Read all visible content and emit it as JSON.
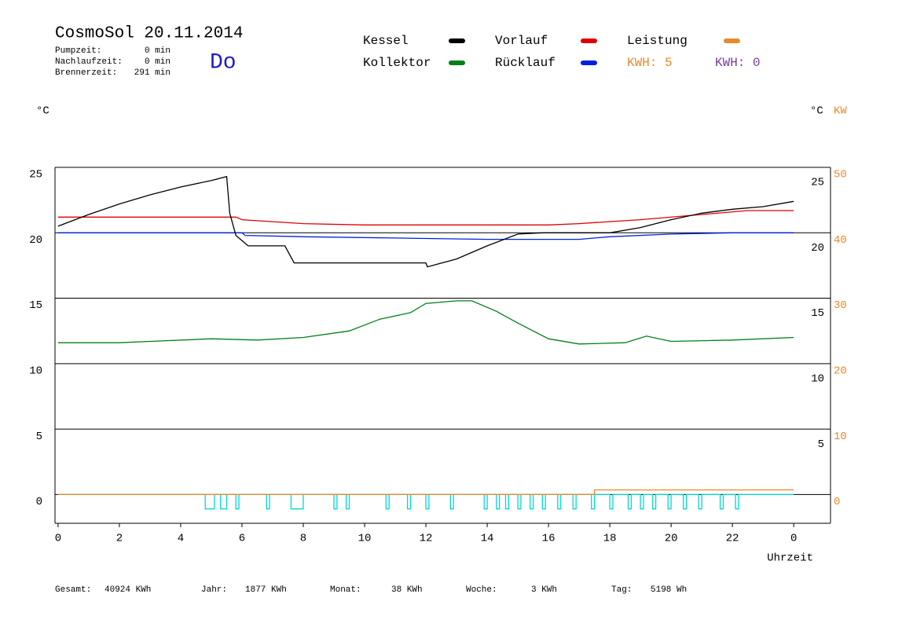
{
  "chart_data": {
    "type": "line",
    "title": "CosmoSol 20.11.2014",
    "weekday": "Do",
    "runtimes": [
      {
        "label": "Pumpzeit:",
        "value": "0 min"
      },
      {
        "label": "Nachlaufzeit:",
        "value": "0 min"
      },
      {
        "label": "Brennerzeit:",
        "value": "291 min"
      }
    ],
    "kwh_labels": [
      {
        "text": "KWH: 5",
        "color": "#e8892a"
      },
      {
        "text": "KWH: 0",
        "color": "#7a3a9a"
      }
    ],
    "y_label": "°C",
    "y2_label_c": "°C",
    "y2_label_kw": "KW",
    "x_label": "Uhrzeit",
    "xlim": [
      -0.1,
      25.2
    ],
    "xticks": [
      0,
      2,
      4,
      6,
      8,
      10,
      12,
      14,
      16,
      18,
      20,
      22,
      {
        "value": 24,
        "label": "0"
      }
    ],
    "ylim": [
      -2.2,
      25
    ],
    "yticks": [
      0,
      5,
      10,
      15,
      20,
      25
    ],
    "yticks_right": [
      5,
      10,
      15,
      20,
      25
    ],
    "y2lim": [
      -4.4,
      50
    ],
    "y2ticks": [
      0,
      10,
      20,
      30,
      40,
      50
    ],
    "grid": true,
    "series": [
      {
        "name": "Kessel",
        "color": "#000000",
        "x": [
          0,
          1,
          2,
          3,
          4,
          5,
          5.5,
          5.6,
          5.8,
          6.2,
          7.4,
          7.7,
          12,
          12.05,
          13,
          14,
          15,
          15.8,
          17,
          18,
          19,
          20,
          21,
          22,
          23,
          24
        ],
        "values": [
          20.5,
          21.4,
          22.2,
          22.9,
          23.5,
          24.0,
          24.3,
          21.5,
          19.8,
          19.0,
          19.0,
          17.7,
          17.7,
          17.4,
          18.0,
          19.0,
          19.9,
          20.0,
          20.0,
          20.0,
          20.4,
          21.0,
          21.5,
          21.8,
          22.0,
          22.4
        ]
      },
      {
        "name": "Vorlauf",
        "color": "#e00000",
        "x": [
          0,
          5.8,
          6,
          8,
          10,
          16,
          17,
          19,
          21,
          22.5,
          24
        ],
        "values": [
          21.2,
          21.2,
          21.0,
          20.7,
          20.6,
          20.6,
          20.7,
          21.0,
          21.4,
          21.7,
          21.7
        ]
      },
      {
        "name": "Rücklauf",
        "color": "#0020e0",
        "x": [
          0,
          6,
          6.1,
          8,
          14,
          17,
          18,
          20,
          22,
          24
        ],
        "values": [
          20.0,
          20.0,
          19.8,
          19.7,
          19.5,
          19.5,
          19.7,
          19.9,
          20.0,
          20.0
        ]
      },
      {
        "name": "Kollektor",
        "color": "#00801a",
        "x": [
          0,
          2,
          3,
          5,
          6.5,
          8,
          9.5,
          10.5,
          11.5,
          12,
          13,
          13.5,
          14.3,
          15,
          16,
          17,
          18.5,
          19.2,
          20,
          22,
          24
        ],
        "values": [
          11.6,
          11.6,
          11.7,
          11.9,
          11.8,
          12.0,
          12.5,
          13.4,
          13.9,
          14.6,
          14.8,
          14.8,
          14.0,
          13.1,
          11.9,
          11.5,
          11.6,
          12.1,
          11.7,
          11.8,
          12.0
        ]
      },
      {
        "name": "Leistung",
        "color": "#e8892a",
        "axis": "y2",
        "x": [
          0,
          17.5,
          17.5,
          24
        ],
        "values": [
          0,
          0,
          0.7,
          0.7
        ]
      },
      {
        "color": "#00d8d8",
        "x": [
          0,
          4.8,
          4.8,
          5.1,
          5.1,
          5.3,
          5.3,
          5.5,
          5.5,
          5.8,
          5.8,
          5.9,
          5.9,
          6.8,
          6.8,
          6.9,
          6.9,
          7.6,
          7.6,
          8.0,
          8.0,
          9.0,
          9.0,
          9.1,
          9.1,
          9.4,
          9.4,
          9.5,
          9.5,
          10.7,
          10.7,
          10.8,
          10.8,
          11.4,
          11.4,
          11.5,
          11.5,
          12.0,
          12.0,
          12.1,
          12.1,
          12.8,
          12.8,
          12.9,
          12.9,
          13.9,
          13.9,
          14.0,
          14.0,
          14.3,
          14.3,
          14.4,
          14.4,
          14.6,
          14.6,
          14.7,
          14.7,
          15.0,
          15.0,
          15.1,
          15.1,
          15.4,
          15.4,
          15.5,
          15.5,
          15.8,
          15.8,
          15.9,
          15.9,
          16.3,
          16.3,
          16.4,
          16.4,
          16.8,
          16.8,
          16.9,
          16.9,
          17.4,
          17.4,
          17.5,
          17.5,
          18.0,
          18.0,
          18.1,
          18.1,
          18.6,
          18.6,
          18.7,
          18.7,
          19.0,
          19.0,
          19.1,
          19.1,
          19.4,
          19.4,
          19.5,
          19.5,
          19.9,
          19.9,
          20.0,
          20.0,
          20.4,
          20.4,
          20.5,
          20.5,
          20.9,
          20.9,
          21.0,
          21.0,
          21.6,
          21.6,
          21.7,
          21.7,
          22.1,
          22.1,
          22.2,
          22.2,
          24
        ],
        "values": [
          0,
          0,
          -1.1,
          -1.1,
          0,
          0,
          -1.1,
          -1.1,
          0,
          0,
          -1.1,
          -1.1,
          0,
          0,
          -1.1,
          -1.1,
          0,
          0,
          -1.1,
          -1.1,
          0,
          0,
          -1.1,
          -1.1,
          0,
          0,
          -1.1,
          -1.1,
          0,
          0,
          -1.1,
          -1.1,
          0,
          0,
          -1.1,
          -1.1,
          0,
          0,
          -1.1,
          -1.1,
          0,
          0,
          -1.1,
          -1.1,
          0,
          0,
          -1.1,
          -1.1,
          0,
          0,
          -1.1,
          -1.1,
          0,
          0,
          -1.1,
          -1.1,
          0,
          0,
          -1.1,
          -1.1,
          0,
          0,
          -1.1,
          -1.1,
          0,
          0,
          -1.1,
          -1.1,
          0,
          0,
          -1.1,
          -1.1,
          0,
          0,
          -1.1,
          -1.1,
          0,
          0,
          -1.1,
          -1.1,
          0,
          0,
          -1.1,
          -1.1,
          0,
          0,
          -1.1,
          -1.1,
          0,
          0,
          -1.1,
          -1.1,
          0,
          0,
          -1.1,
          -1.1,
          0,
          0,
          -1.1,
          -1.1,
          0,
          0,
          -1.1,
          -1.1,
          0,
          0,
          -1.1,
          -1.1,
          0,
          0,
          -1.1,
          -1.1,
          0,
          0,
          -1.1,
          -1.1,
          0,
          0
        ]
      }
    ],
    "totals": [
      {
        "label": "Gesamt:",
        "value": "40924 KWh"
      },
      {
        "label": "Jahr:",
        "value": "1877 KWh"
      },
      {
        "label": "Monat:",
        "value": "38 KWh"
      },
      {
        "label": "Woche:",
        "value": "3 KWh"
      },
      {
        "label": "Tag:",
        "value": "5198 Wh"
      }
    ]
  }
}
